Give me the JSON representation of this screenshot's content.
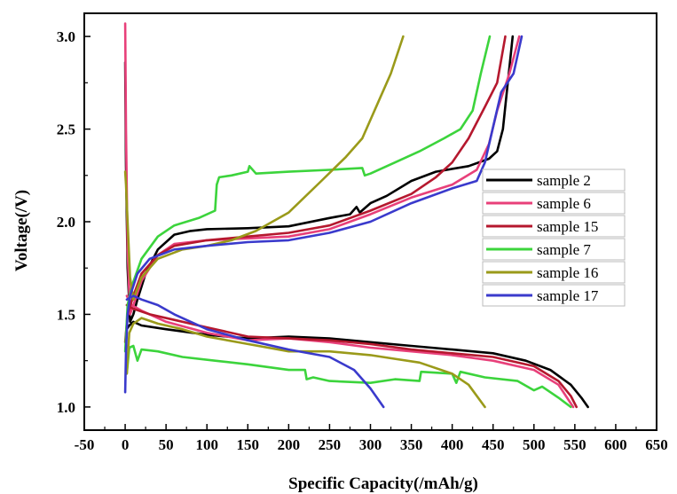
{
  "chart_data": {
    "type": "line",
    "title": "",
    "xlabel": "Specific Capacity(/mAh/g)",
    "ylabel": "Voltage(/V)",
    "xlim": [
      -50,
      650
    ],
    "ylim": [
      0.875,
      3.125
    ],
    "xticks": [
      -50,
      0,
      50,
      100,
      150,
      200,
      250,
      300,
      350,
      400,
      450,
      500,
      550,
      600,
      650
    ],
    "xtick_labels": [
      "-50",
      "0",
      "50",
      "100",
      "150",
      "200",
      "250",
      "300",
      "350",
      "400",
      "450",
      "500",
      "550",
      "600",
      "650"
    ],
    "yticks": [
      1.0,
      1.5,
      2.0,
      2.5,
      3.0
    ],
    "ytick_labels": [
      "1.0",
      "1.5",
      "2.0",
      "2.5",
      "3.0"
    ],
    "grid": false,
    "legend_position": "right-middle",
    "series": [
      {
        "name": "sample 2",
        "color": "#000000",
        "charge": [
          [
            0,
            2.86
          ],
          [
            1,
            2.3
          ],
          [
            3,
            1.75
          ],
          [
            6,
            1.46
          ],
          [
            10,
            1.5
          ],
          [
            15,
            1.58
          ],
          [
            25,
            1.72
          ],
          [
            40,
            1.85
          ],
          [
            60,
            1.93
          ],
          [
            80,
            1.95
          ],
          [
            100,
            1.96
          ],
          [
            150,
            1.965
          ],
          [
            200,
            1.975
          ],
          [
            250,
            2.02
          ],
          [
            275,
            2.04
          ],
          [
            283,
            2.08
          ],
          [
            287,
            2.05
          ],
          [
            300,
            2.1
          ],
          [
            320,
            2.14
          ],
          [
            350,
            2.22
          ],
          [
            380,
            2.27
          ],
          [
            420,
            2.3
          ],
          [
            445,
            2.34
          ],
          [
            455,
            2.38
          ],
          [
            462,
            2.5
          ],
          [
            468,
            2.75
          ],
          [
            474,
            3.0
          ]
        ],
        "discharge": [
          [
            2,
            1.42
          ],
          [
            5,
            1.44
          ],
          [
            10,
            1.46
          ],
          [
            20,
            1.44
          ],
          [
            50,
            1.42
          ],
          [
            100,
            1.39
          ],
          [
            150,
            1.37
          ],
          [
            200,
            1.38
          ],
          [
            250,
            1.37
          ],
          [
            300,
            1.35
          ],
          [
            350,
            1.33
          ],
          [
            400,
            1.31
          ],
          [
            450,
            1.29
          ],
          [
            490,
            1.25
          ],
          [
            520,
            1.2
          ],
          [
            545,
            1.12
          ],
          [
            558,
            1.05
          ],
          [
            566,
            1.0
          ]
        ]
      },
      {
        "name": "sample 6",
        "color": "#e8407a",
        "charge": [
          [
            0,
            3.07
          ],
          [
            1,
            2.5
          ],
          [
            3,
            1.85
          ],
          [
            6,
            1.5
          ],
          [
            10,
            1.55
          ],
          [
            20,
            1.68
          ],
          [
            40,
            1.82
          ],
          [
            60,
            1.88
          ],
          [
            100,
            1.9
          ],
          [
            150,
            1.91
          ],
          [
            200,
            1.92
          ],
          [
            250,
            1.96
          ],
          [
            300,
            2.04
          ],
          [
            350,
            2.13
          ],
          [
            400,
            2.2
          ],
          [
            430,
            2.28
          ],
          [
            445,
            2.42
          ],
          [
            455,
            2.6
          ],
          [
            470,
            2.8
          ],
          [
            482,
            3.0
          ]
        ],
        "discharge": [
          [
            2,
            1.6
          ],
          [
            8,
            1.55
          ],
          [
            20,
            1.52
          ],
          [
            50,
            1.46
          ],
          [
            100,
            1.4
          ],
          [
            150,
            1.36
          ],
          [
            200,
            1.37
          ],
          [
            250,
            1.35
          ],
          [
            300,
            1.32
          ],
          [
            350,
            1.3
          ],
          [
            400,
            1.28
          ],
          [
            450,
            1.25
          ],
          [
            500,
            1.2
          ],
          [
            530,
            1.12
          ],
          [
            548,
            1.0
          ]
        ]
      },
      {
        "name": "sample 15",
        "color": "#b5182e",
        "charge": [
          [
            0,
            1.35
          ],
          [
            3,
            1.5
          ],
          [
            10,
            1.6
          ],
          [
            20,
            1.72
          ],
          [
            40,
            1.82
          ],
          [
            60,
            1.87
          ],
          [
            100,
            1.9
          ],
          [
            150,
            1.92
          ],
          [
            200,
            1.94
          ],
          [
            250,
            1.98
          ],
          [
            300,
            2.06
          ],
          [
            350,
            2.15
          ],
          [
            380,
            2.24
          ],
          [
            400,
            2.32
          ],
          [
            420,
            2.45
          ],
          [
            440,
            2.62
          ],
          [
            455,
            2.75
          ],
          [
            465,
            3.0
          ]
        ],
        "discharge": [
          [
            2,
            1.55
          ],
          [
            10,
            1.53
          ],
          [
            30,
            1.5
          ],
          [
            60,
            1.47
          ],
          [
            100,
            1.43
          ],
          [
            150,
            1.38
          ],
          [
            200,
            1.37
          ],
          [
            250,
            1.36
          ],
          [
            300,
            1.34
          ],
          [
            350,
            1.31
          ],
          [
            400,
            1.29
          ],
          [
            450,
            1.27
          ],
          [
            500,
            1.22
          ],
          [
            530,
            1.14
          ],
          [
            545,
            1.06
          ],
          [
            552,
            1.0
          ]
        ]
      },
      {
        "name": "sample 7",
        "color": "#3cd43c",
        "charge": [
          [
            0,
            1.3
          ],
          [
            3,
            1.55
          ],
          [
            8,
            1.65
          ],
          [
            20,
            1.8
          ],
          [
            40,
            1.92
          ],
          [
            60,
            1.98
          ],
          [
            90,
            2.02
          ],
          [
            110,
            2.06
          ],
          [
            112,
            2.2
          ],
          [
            115,
            2.24
          ],
          [
            130,
            2.25
          ],
          [
            150,
            2.27
          ],
          [
            152,
            2.3
          ],
          [
            160,
            2.26
          ],
          [
            200,
            2.27
          ],
          [
            250,
            2.28
          ],
          [
            290,
            2.29
          ],
          [
            293,
            2.25
          ],
          [
            300,
            2.26
          ],
          [
            330,
            2.32
          ],
          [
            360,
            2.38
          ],
          [
            390,
            2.45
          ],
          [
            410,
            2.5
          ],
          [
            425,
            2.6
          ],
          [
            435,
            2.8
          ],
          [
            446,
            3.0
          ]
        ],
        "discharge": [
          [
            2,
            1.18
          ],
          [
            5,
            1.32
          ],
          [
            10,
            1.33
          ],
          [
            15,
            1.25
          ],
          [
            20,
            1.31
          ],
          [
            40,
            1.3
          ],
          [
            70,
            1.27
          ],
          [
            110,
            1.25
          ],
          [
            150,
            1.23
          ],
          [
            200,
            1.2
          ],
          [
            220,
            1.2
          ],
          [
            222,
            1.15
          ],
          [
            230,
            1.16
          ],
          [
            250,
            1.14
          ],
          [
            300,
            1.13
          ],
          [
            330,
            1.15
          ],
          [
            360,
            1.14
          ],
          [
            362,
            1.19
          ],
          [
            400,
            1.18
          ],
          [
            405,
            1.13
          ],
          [
            410,
            1.19
          ],
          [
            440,
            1.16
          ],
          [
            480,
            1.14
          ],
          [
            500,
            1.09
          ],
          [
            510,
            1.11
          ],
          [
            530,
            1.05
          ],
          [
            545,
            1.0
          ]
        ]
      },
      {
        "name": "sample 16",
        "color": "#9a9a1a",
        "charge": [
          [
            0,
            2.27
          ],
          [
            1,
            2.2
          ],
          [
            3,
            2.0
          ],
          [
            6,
            1.7
          ],
          [
            10,
            1.58
          ],
          [
            20,
            1.7
          ],
          [
            40,
            1.8
          ],
          [
            70,
            1.85
          ],
          [
            100,
            1.87
          ],
          [
            130,
            1.9
          ],
          [
            160,
            1.95
          ],
          [
            200,
            2.05
          ],
          [
            240,
            2.22
          ],
          [
            270,
            2.35
          ],
          [
            290,
            2.45
          ],
          [
            310,
            2.65
          ],
          [
            325,
            2.8
          ],
          [
            340,
            3.0
          ]
        ],
        "discharge": [
          [
            2,
            1.18
          ],
          [
            5,
            1.4
          ],
          [
            10,
            1.45
          ],
          [
            20,
            1.48
          ],
          [
            40,
            1.45
          ],
          [
            70,
            1.42
          ],
          [
            100,
            1.38
          ],
          [
            150,
            1.34
          ],
          [
            200,
            1.3
          ],
          [
            230,
            1.3
          ],
          [
            250,
            1.3
          ],
          [
            300,
            1.28
          ],
          [
            330,
            1.26
          ],
          [
            360,
            1.24
          ],
          [
            400,
            1.18
          ],
          [
            420,
            1.12
          ],
          [
            440,
            1.0
          ]
        ]
      },
      {
        "name": "sample 17",
        "color": "#3a3acc",
        "charge": [
          [
            0,
            1.08
          ],
          [
            1,
            1.3
          ],
          [
            3,
            1.5
          ],
          [
            6,
            1.6
          ],
          [
            15,
            1.72
          ],
          [
            30,
            1.8
          ],
          [
            60,
            1.85
          ],
          [
            100,
            1.87
          ],
          [
            150,
            1.89
          ],
          [
            200,
            1.9
          ],
          [
            250,
            1.94
          ],
          [
            300,
            2.0
          ],
          [
            350,
            2.1
          ],
          [
            400,
            2.18
          ],
          [
            430,
            2.22
          ],
          [
            440,
            2.32
          ],
          [
            452,
            2.55
          ],
          [
            460,
            2.7
          ],
          [
            475,
            2.8
          ],
          [
            485,
            3.0
          ]
        ],
        "discharge": [
          [
            2,
            1.58
          ],
          [
            10,
            1.6
          ],
          [
            20,
            1.58
          ],
          [
            40,
            1.55
          ],
          [
            60,
            1.5
          ],
          [
            100,
            1.42
          ],
          [
            150,
            1.36
          ],
          [
            200,
            1.31
          ],
          [
            250,
            1.27
          ],
          [
            280,
            1.2
          ],
          [
            300,
            1.1
          ],
          [
            316,
            1.0
          ]
        ]
      }
    ]
  }
}
